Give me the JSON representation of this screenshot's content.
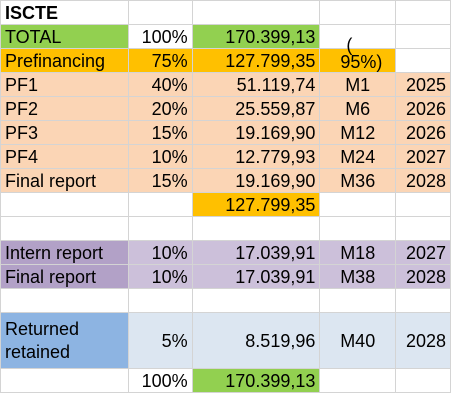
{
  "title": "ISCTE",
  "total": {
    "label": "TOTAL",
    "pct": "100%",
    "amount": "170.399,13"
  },
  "prefinancing": {
    "label": "Prefinancing",
    "pct": "75%",
    "amount": "127.799,35",
    "note_a": "(",
    "note_b": "95%)"
  },
  "pf_rows": [
    {
      "label": "PF1",
      "pct": "40%",
      "amount": "51.119,74",
      "milestone": "M1",
      "year": "2025"
    },
    {
      "label": "PF2",
      "pct": "20%",
      "amount": "25.559,87",
      "milestone": "M6",
      "year": "2026"
    },
    {
      "label": "PF3",
      "pct": "15%",
      "amount": "19.169,90",
      "milestone": "M12",
      "year": "2026"
    },
    {
      "label": "PF4",
      "pct": "10%",
      "amount": "12.779,93",
      "milestone": "M24",
      "year": "2027"
    },
    {
      "label": "Final report",
      "pct": "15%",
      "amount": "19.169,90",
      "milestone": "M36",
      "year": "2028"
    }
  ],
  "pf_subtotal": "127.799,35",
  "reports": [
    {
      "label": "Intern report",
      "pct": "10%",
      "amount": "17.039,91",
      "milestone": "M18",
      "year": "2027"
    },
    {
      "label": "Final report",
      "pct": "10%",
      "amount": "17.039,91",
      "milestone": "M38",
      "year": "2028"
    }
  ],
  "retained": {
    "label": "Returned retained",
    "pct": "5%",
    "amount": "8.519,96",
    "milestone": "M40",
    "year": "2028"
  },
  "grand_total": {
    "pct": "100%",
    "amount": "170.399,13"
  }
}
